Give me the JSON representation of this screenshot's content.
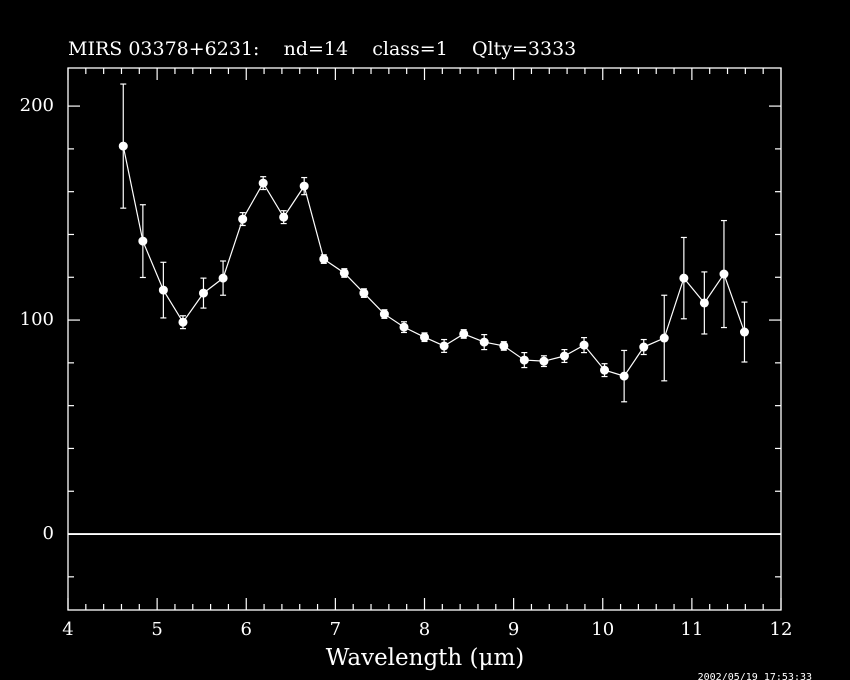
{
  "chart_data": {
    "type": "errorbar-line",
    "title": "MIRS 03378+6231:    nd=14    class=1    Qlty=3333",
    "x_label": "Wavelength (μm)",
    "timestamp": "2002/05/19 17:53:33",
    "xlim": [
      4,
      12
    ],
    "ylim": [
      -35.5,
      217.8
    ],
    "xticks": [
      4,
      5,
      6,
      7,
      8,
      9,
      10,
      11,
      12
    ],
    "yticks": [
      0,
      100,
      200
    ],
    "xminorticks": [
      4.2,
      4.4,
      4.6,
      4.8,
      5.2,
      5.4,
      5.6,
      5.8,
      6.2,
      6.4,
      6.6,
      6.8,
      7.2,
      7.4,
      7.6,
      7.8,
      8.2,
      8.4,
      8.6,
      8.8,
      9.2,
      9.4,
      9.6,
      9.8,
      10.2,
      10.4,
      10.6,
      10.8,
      11.2,
      11.4,
      11.6,
      11.8
    ],
    "yminorticks": [
      -20,
      20,
      40,
      60,
      80,
      120,
      140,
      160,
      180
    ],
    "hlines": [
      0
    ],
    "color": "#ffffff",
    "series": [
      {
        "x": [
          4.62,
          4.84,
          5.07,
          5.29,
          5.52,
          5.74,
          5.96,
          6.19,
          6.42,
          6.65,
          6.87,
          7.1,
          7.32,
          7.55,
          7.77,
          8.0,
          8.22,
          8.44,
          8.67,
          8.89,
          9.12,
          9.34,
          9.57,
          9.79,
          10.02,
          10.24,
          10.46,
          10.69,
          10.91,
          11.14,
          11.36,
          11.59
        ],
        "values": [
          181.3,
          136.9,
          114,
          99,
          112.6,
          119.6,
          147.2,
          164,
          148.1,
          162.6,
          128.5,
          122,
          112.6,
          102.8,
          96.7,
          92,
          87.9,
          93.5,
          89.7,
          87.9,
          81.3,
          80.8,
          83.2,
          88.3,
          76.6,
          73.8,
          87.4,
          91.6,
          119.6,
          108,
          121.5,
          94.4
        ],
        "errors": [
          29,
          17,
          13,
          3,
          7,
          8,
          3,
          3,
          3,
          4,
          2,
          2,
          2,
          2,
          2.5,
          2,
          3,
          2,
          3.5,
          2,
          3.5,
          2.5,
          3,
          3.5,
          3,
          12,
          3.5,
          20,
          19,
          14.5,
          25,
          14
        ]
      }
    ]
  }
}
